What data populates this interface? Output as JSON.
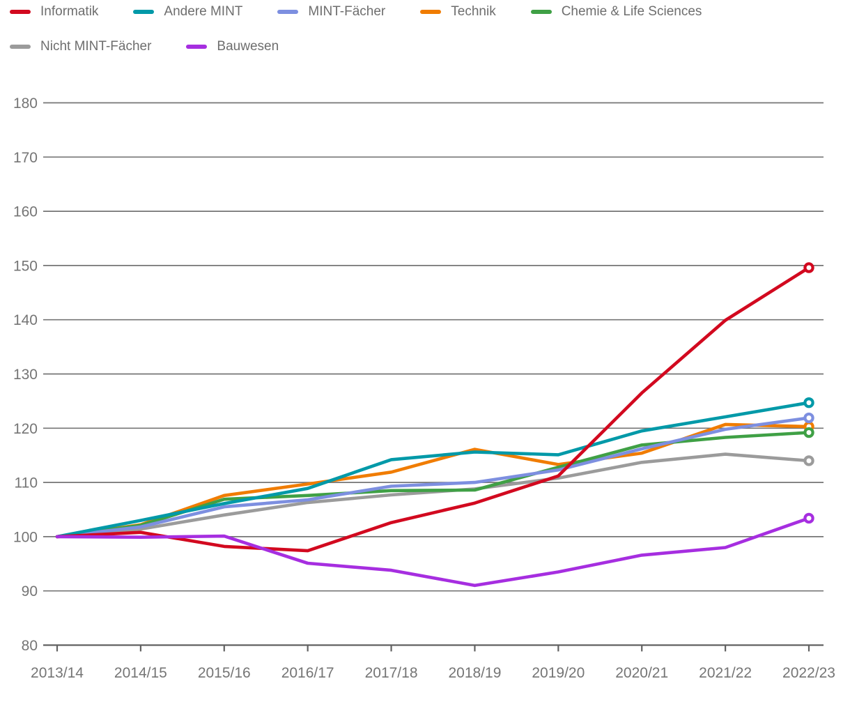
{
  "legend": {
    "items": [
      {
        "key": "informatik",
        "label": "Informatik",
        "color": "#d2091f"
      },
      {
        "key": "andere-mint",
        "label": "Andere MINT",
        "color": "#0099a8"
      },
      {
        "key": "mint-faecher",
        "label": "MINT-Fächer",
        "color": "#7d8fe0"
      },
      {
        "key": "technik",
        "label": "Technik",
        "color": "#f07c00"
      },
      {
        "key": "chemie-life-sciences",
        "label": "Chemie & Life Sciences",
        "color": "#3fa045"
      },
      {
        "key": "nicht-mint-faecher",
        "label": "Nicht MINT-Fächer",
        "color": "#9b9b9b"
      },
      {
        "key": "bauwesen",
        "label": "Bauwesen",
        "color": "#a62ee0"
      }
    ]
  },
  "chart_data": {
    "type": "line",
    "title": "",
    "xlabel": "",
    "ylabel": "",
    "categories": [
      "2013/14",
      "2014/15",
      "2015/16",
      "2016/17",
      "2017/18",
      "2018/19",
      "2019/20",
      "2020/21",
      "2021/22",
      "2022/23"
    ],
    "series": [
      {
        "name": "Informatik",
        "key": "informatik",
        "color": "#d2091f",
        "values": [
          100,
          100.8,
          98.2,
          97.4,
          102.6,
          106.2,
          111.2,
          126.5,
          139.9,
          149.6
        ]
      },
      {
        "name": "Andere MINT",
        "key": "andere-mint",
        "color": "#0099a8",
        "values": [
          100,
          103.0,
          106.1,
          108.9,
          114.2,
          115.6,
          115.1,
          119.5,
          122.1,
          124.7
        ]
      },
      {
        "name": "MINT-Fächer",
        "key": "mint-faecher",
        "color": "#7d8fe0",
        "values": [
          100,
          101.8,
          105.5,
          106.8,
          109.3,
          110.0,
          112.3,
          116.2,
          119.8,
          121.9
        ]
      },
      {
        "name": "Technik",
        "key": "technik",
        "color": "#f07c00",
        "values": [
          100,
          102.2,
          107.6,
          109.7,
          111.9,
          116.1,
          113.3,
          115.4,
          120.7,
          120.3
        ]
      },
      {
        "name": "Chemie & Life Sciences",
        "key": "chemie-life-sciences",
        "color": "#3fa045",
        "values": [
          100,
          102.1,
          106.9,
          107.6,
          108.5,
          108.6,
          112.8,
          116.9,
          118.3,
          119.2
        ]
      },
      {
        "name": "Nicht MINT-Fächer",
        "key": "nicht-mint-faecher",
        "color": "#9b9b9b",
        "values": [
          100,
          101.4,
          104.0,
          106.3,
          107.7,
          108.8,
          110.8,
          113.7,
          115.2,
          114.0
        ]
      },
      {
        "name": "Bauwesen",
        "key": "bauwesen",
        "color": "#a62ee0",
        "values": [
          100,
          99.9,
          100.1,
          95.1,
          93.8,
          91.0,
          93.5,
          96.6,
          98.0,
          103.4
        ]
      }
    ],
    "yticks": [
      80,
      90,
      100,
      110,
      120,
      130,
      140,
      150,
      160,
      170,
      180
    ],
    "ylim": [
      80,
      185
    ],
    "grid": "horizontal",
    "legend_position": "top-left",
    "end_marker": "open-circle",
    "colors": {
      "gridline": "#757575",
      "axis_line": "#616161",
      "tick_label": "#757575",
      "legend_text": "#6e6e6e",
      "background": "#ffffff"
    }
  }
}
